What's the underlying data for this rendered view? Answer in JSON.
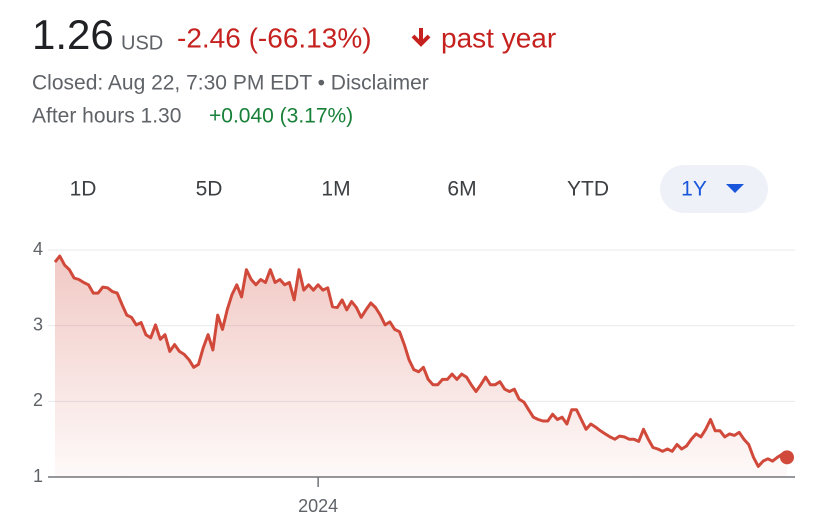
{
  "header": {
    "price": "1.26",
    "currency": "USD",
    "change": "-2.46 (-66.13%)",
    "period": "past year",
    "closed": "Closed: Aug 22, 7:30 PM EDT • Disclaimer",
    "after_hours": "After hours 1.30",
    "after_hours_change": "+0.040 (3.17%)"
  },
  "tabs": [
    "1D",
    "5D",
    "1M",
    "6M",
    "YTD",
    "1Y"
  ],
  "chart_data": {
    "type": "line",
    "color": "#d0493a",
    "values": [
      3.84,
      3.92,
      3.8,
      3.74,
      3.63,
      3.61,
      3.57,
      3.54,
      3.43,
      3.43,
      3.51,
      3.5,
      3.45,
      3.43,
      3.28,
      3.14,
      3.11,
      3.01,
      3.04,
      2.88,
      2.84,
      3.01,
      2.82,
      2.88,
      2.66,
      2.75,
      2.66,
      2.62,
      2.55,
      2.45,
      2.49,
      2.71,
      2.88,
      2.68,
      3.14,
      2.95,
      3.21,
      3.41,
      3.54,
      3.38,
      3.74,
      3.61,
      3.54,
      3.61,
      3.57,
      3.74,
      3.57,
      3.61,
      3.54,
      3.57,
      3.34,
      3.74,
      3.47,
      3.54,
      3.47,
      3.54,
      3.47,
      3.5,
      3.25,
      3.24,
      3.34,
      3.21,
      3.32,
      3.24,
      3.11,
      3.21,
      3.3,
      3.24,
      3.14,
      3.01,
      3.05,
      2.95,
      2.92,
      2.75,
      2.55,
      2.42,
      2.39,
      2.45,
      2.29,
      2.22,
      2.22,
      2.29,
      2.29,
      2.36,
      2.29,
      2.36,
      2.32,
      2.22,
      2.13,
      2.22,
      2.32,
      2.22,
      2.22,
      2.26,
      2.16,
      2.13,
      2.16,
      2.03,
      1.99,
      1.89,
      1.79,
      1.76,
      1.74,
      1.74,
      1.83,
      1.76,
      1.79,
      1.7,
      1.89,
      1.89,
      1.76,
      1.63,
      1.7,
      1.66,
      1.61,
      1.57,
      1.53,
      1.5,
      1.54,
      1.53,
      1.5,
      1.5,
      1.47,
      1.63,
      1.5,
      1.39,
      1.37,
      1.34,
      1.37,
      1.34,
      1.43,
      1.37,
      1.41,
      1.5,
      1.57,
      1.53,
      1.63,
      1.76,
      1.61,
      1.61,
      1.53,
      1.57,
      1.55,
      1.59,
      1.5,
      1.43,
      1.26,
      1.14,
      1.21,
      1.24,
      1.21,
      1.26,
      1.3,
      1.26
    ],
    "xlim": [
      0,
      153
    ],
    "xticks": [
      {
        "value": 55,
        "label": "2024"
      }
    ],
    "ylim": [
      1,
      4
    ],
    "yticks": [
      1,
      2,
      3,
      4
    ],
    "grid": true
  }
}
